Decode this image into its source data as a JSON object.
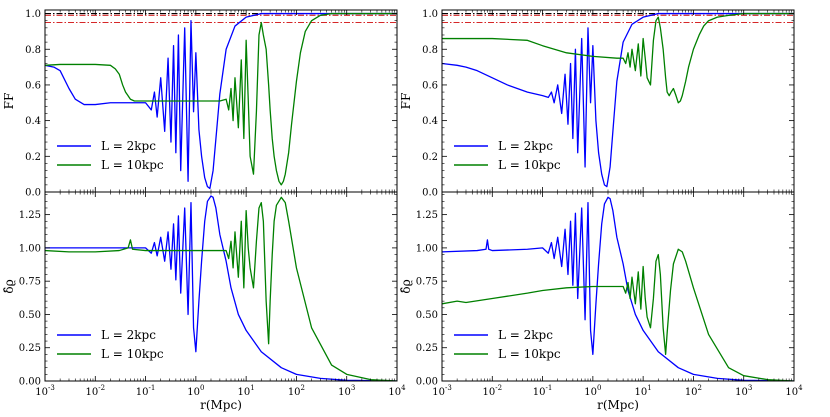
{
  "chart_data": {
    "type": "line",
    "x_scale": "log",
    "xlim": [
      0.001,
      10000
    ],
    "xlabel": "r(Mpc)",
    "x_tick_labels": [
      "10^-3",
      "10^-2",
      "10^-1",
      "10^0",
      "10^1",
      "10^2",
      "10^3",
      "10^4"
    ],
    "reference_lines": [
      {
        "y": 1.0,
        "color": "#000000",
        "style": "dash-dot"
      },
      {
        "y": 0.99,
        "color": "#d62728",
        "style": "dash-dot"
      },
      {
        "y": 0.95,
        "color": "#d62728",
        "style": "dash-dot"
      }
    ],
    "colors": {
      "L2": "#0000ff",
      "L10": "#008000"
    },
    "panels": [
      {
        "id": "left-top",
        "col": 0,
        "row": 0,
        "ylabel": "FF",
        "ylim": [
          0.0,
          1.02
        ],
        "y_ticks": [
          0.0,
          0.2,
          0.4,
          0.6,
          0.8,
          1.0
        ],
        "y_tick_labels": [
          "0.0",
          "0.2",
          "0.4",
          "0.6",
          "0.8",
          "1.0"
        ],
        "show_refs": true,
        "series": [
          {
            "name": "L = 2kpc",
            "color": "#0000ff",
            "x": [
              0.001,
              0.0015,
              0.002,
              0.003,
              0.004,
              0.006,
              0.01,
              0.02,
              0.05,
              0.1,
              0.13,
              0.15,
              0.17,
              0.2,
              0.24,
              0.28,
              0.32,
              0.36,
              0.4,
              0.45,
              0.5,
              0.6,
              0.7,
              0.8,
              0.9,
              1.0,
              1.15,
              1.3,
              1.5,
              1.7,
              1.9,
              2.2,
              2.6,
              3.0,
              4.0,
              6.0,
              10,
              20,
              50,
              100,
              1000,
              10000
            ],
            "y": [
              0.71,
              0.7,
              0.68,
              0.58,
              0.52,
              0.49,
              0.49,
              0.5,
              0.5,
              0.5,
              0.46,
              0.56,
              0.42,
              0.64,
              0.34,
              0.75,
              0.28,
              0.82,
              0.22,
              0.88,
              0.12,
              0.92,
              0.06,
              0.96,
              0.45,
              0.78,
              0.35,
              0.2,
              0.08,
              0.03,
              0.02,
              0.12,
              0.35,
              0.55,
              0.8,
              0.93,
              0.98,
              1.0,
              1.0,
              1.0,
              1.0,
              1.0
            ]
          },
          {
            "name": "L = 10kpc",
            "color": "#008000",
            "x": [
              0.001,
              0.002,
              0.005,
              0.01,
              0.02,
              0.025,
              0.03,
              0.035,
              0.04,
              0.05,
              0.06,
              0.1,
              0.5,
              1.0,
              3.0,
              4.0,
              4.5,
              5.0,
              5.5,
              6.0,
              7.0,
              8.0,
              9.0,
              10,
              11,
              12,
              14,
              16,
              18,
              20,
              22,
              25,
              28,
              30,
              33,
              36,
              40,
              45,
              50,
              55,
              60,
              70,
              80,
              100,
              120,
              150,
              200,
              300,
              500,
              1000,
              10000
            ],
            "y": [
              0.71,
              0.715,
              0.715,
              0.715,
              0.71,
              0.69,
              0.66,
              0.6,
              0.56,
              0.52,
              0.51,
              0.51,
              0.51,
              0.51,
              0.51,
              0.52,
              0.46,
              0.58,
              0.4,
              0.64,
              0.36,
              0.74,
              0.3,
              0.85,
              0.52,
              0.2,
              0.1,
              0.45,
              0.88,
              0.95,
              0.88,
              0.8,
              0.6,
              0.46,
              0.3,
              0.2,
              0.12,
              0.06,
              0.04,
              0.06,
              0.1,
              0.22,
              0.38,
              0.62,
              0.78,
              0.9,
              0.96,
              0.99,
              1.0,
              1.0,
              1.0
            ]
          }
        ]
      },
      {
        "id": "left-bottom",
        "col": 0,
        "row": 1,
        "ylabel": "δ̂ϱ",
        "ylim": [
          0.0,
          1.42
        ],
        "y_ticks": [
          0.0,
          0.25,
          0.5,
          0.75,
          1.0,
          1.25
        ],
        "y_tick_labels": [
          "0.00",
          "0.25",
          "0.50",
          "0.75",
          "1.00",
          "1.25"
        ],
        "show_refs": false,
        "series": [
          {
            "name": "L = 2kpc",
            "color": "#0000ff",
            "x": [
              0.001,
              0.01,
              0.1,
              0.13,
              0.15,
              0.17,
              0.2,
              0.24,
              0.28,
              0.32,
              0.36,
              0.4,
              0.45,
              0.5,
              0.6,
              0.7,
              0.8,
              0.9,
              1.0,
              1.15,
              1.3,
              1.5,
              1.7,
              2.0,
              2.2,
              2.5,
              3.0,
              4.0,
              5.0,
              7.0,
              10,
              20,
              50,
              100,
              300,
              1000,
              10000
            ],
            "y": [
              1.0,
              1.0,
              1.0,
              0.96,
              1.04,
              0.94,
              1.08,
              0.9,
              1.12,
              0.84,
              1.18,
              0.76,
              1.24,
              0.66,
              1.3,
              0.5,
              1.34,
              0.4,
              0.22,
              0.6,
              0.9,
              1.2,
              1.35,
              1.39,
              1.38,
              1.3,
              1.1,
              0.9,
              0.7,
              0.5,
              0.38,
              0.22,
              0.1,
              0.05,
              0.02,
              0.005,
              0.0
            ]
          },
          {
            "name": "L = 10kpc",
            "color": "#008000",
            "x": [
              0.001,
              0.003,
              0.01,
              0.03,
              0.045,
              0.05,
              0.055,
              0.1,
              0.5,
              1.0,
              3.0,
              4.0,
              4.5,
              5.0,
              5.5,
              6.0,
              7.0,
              8.0,
              9.0,
              10,
              11,
              12,
              14,
              16,
              18,
              20,
              22,
              25,
              28,
              30,
              33,
              36,
              40,
              50,
              60,
              70,
              100,
              200,
              500,
              1000,
              3000,
              10000
            ],
            "y": [
              0.98,
              0.97,
              0.97,
              0.98,
              1.0,
              1.06,
              0.99,
              0.98,
              0.98,
              0.98,
              0.98,
              0.98,
              0.92,
              1.05,
              0.85,
              1.12,
              0.78,
              1.2,
              0.7,
              1.28,
              1.0,
              0.85,
              0.7,
              1.05,
              1.3,
              1.34,
              1.2,
              0.6,
              0.28,
              0.6,
              0.95,
              1.2,
              1.32,
              1.38,
              1.34,
              1.2,
              0.85,
              0.4,
              0.12,
              0.05,
              0.01,
              0.0
            ]
          }
        ]
      },
      {
        "id": "right-top",
        "col": 1,
        "row": 0,
        "ylabel": "FF",
        "ylim": [
          0.0,
          1.02
        ],
        "y_ticks": [
          0.0,
          0.2,
          0.4,
          0.6,
          0.8,
          1.0
        ],
        "y_tick_labels": [
          "0.0",
          "0.2",
          "0.4",
          "0.6",
          "0.8",
          "1.0"
        ],
        "show_refs": true,
        "series": [
          {
            "name": "L = 2kpc",
            "color": "#0000ff",
            "x": [
              0.001,
              0.002,
              0.003,
              0.005,
              0.01,
              0.02,
              0.05,
              0.1,
              0.13,
              0.15,
              0.17,
              0.2,
              0.24,
              0.28,
              0.32,
              0.36,
              0.4,
              0.45,
              0.5,
              0.6,
              0.7,
              0.8,
              0.9,
              1.0,
              1.15,
              1.3,
              1.5,
              1.7,
              1.9,
              2.2,
              2.6,
              3.0,
              4.0,
              6.0,
              10,
              20,
              50,
              100,
              1000,
              10000
            ],
            "y": [
              0.72,
              0.71,
              0.7,
              0.68,
              0.64,
              0.6,
              0.56,
              0.54,
              0.53,
              0.56,
              0.5,
              0.6,
              0.44,
              0.66,
              0.38,
              0.72,
              0.3,
              0.8,
              0.22,
              0.86,
              0.14,
              0.92,
              0.5,
              0.82,
              0.4,
              0.22,
              0.1,
              0.04,
              0.03,
              0.14,
              0.4,
              0.62,
              0.84,
              0.94,
              0.98,
              1.0,
              1.0,
              1.0,
              1.0,
              1.0
            ]
          },
          {
            "name": "L = 10kpc",
            "color": "#008000",
            "x": [
              0.001,
              0.01,
              0.05,
              0.1,
              0.3,
              1.0,
              3.0,
              4.0,
              4.5,
              5.0,
              5.5,
              6.0,
              7.0,
              8.0,
              9.0,
              10,
              11,
              12,
              14,
              16,
              18,
              20,
              22,
              25,
              28,
              30,
              33,
              36,
              40,
              45,
              50,
              55,
              60,
              70,
              80,
              100,
              130,
              160,
              200,
              300,
              500,
              1000,
              10000
            ],
            "y": [
              0.86,
              0.86,
              0.85,
              0.82,
              0.78,
              0.76,
              0.75,
              0.75,
              0.72,
              0.78,
              0.7,
              0.8,
              0.68,
              0.83,
              0.65,
              0.86,
              0.75,
              0.64,
              0.6,
              0.85,
              0.96,
              0.98,
              0.92,
              0.8,
              0.64,
              0.56,
              0.54,
              0.56,
              0.58,
              0.54,
              0.5,
              0.51,
              0.54,
              0.62,
              0.7,
              0.8,
              0.88,
              0.93,
              0.96,
              0.98,
              0.99,
              1.0,
              1.0
            ]
          }
        ]
      },
      {
        "id": "right-bottom",
        "col": 1,
        "row": 1,
        "ylabel": "δ̂ϱ",
        "ylim": [
          0.0,
          1.42
        ],
        "y_ticks": [
          0.0,
          0.25,
          0.5,
          0.75,
          1.0,
          1.25
        ],
        "y_tick_labels": [
          "0.00",
          "0.25",
          "0.50",
          "0.75",
          "1.00",
          "1.25"
        ],
        "show_refs": false,
        "series": [
          {
            "name": "L = 2kpc",
            "color": "#0000ff",
            "x": [
              0.001,
              0.005,
              0.0075,
              0.008,
              0.0085,
              0.01,
              0.05,
              0.1,
              0.13,
              0.15,
              0.17,
              0.2,
              0.24,
              0.28,
              0.32,
              0.36,
              0.4,
              0.45,
              0.5,
              0.6,
              0.7,
              0.8,
              0.9,
              1.0,
              1.15,
              1.3,
              1.5,
              1.7,
              2.0,
              2.2,
              2.5,
              3.0,
              4.0,
              5.0,
              7.0,
              10,
              20,
              50,
              100,
              300,
              1000,
              10000
            ],
            "y": [
              0.97,
              0.98,
              0.99,
              1.06,
              0.99,
              0.98,
              0.99,
              1.0,
              0.96,
              1.04,
              0.92,
              1.08,
              0.86,
              1.14,
              0.8,
              1.2,
              0.72,
              1.26,
              0.62,
              1.3,
              0.46,
              1.34,
              0.38,
              0.2,
              0.58,
              0.88,
              1.18,
              1.33,
              1.38,
              1.37,
              1.28,
              1.08,
              0.88,
              0.68,
              0.5,
              0.38,
              0.22,
              0.1,
              0.05,
              0.02,
              0.005,
              0.0
            ]
          },
          {
            "name": "L = 10kpc",
            "color": "#008000",
            "x": [
              0.001,
              0.002,
              0.003,
              0.01,
              0.05,
              0.1,
              0.3,
              1.0,
              3.0,
              4.0,
              4.5,
              5.0,
              5.5,
              6.0,
              7.0,
              8.0,
              9.0,
              10,
              11,
              12,
              14,
              16,
              18,
              20,
              22,
              25,
              28,
              30,
              35,
              40,
              50,
              60,
              70,
              100,
              200,
              500,
              1000,
              3000,
              10000
            ],
            "y": [
              0.58,
              0.6,
              0.59,
              0.62,
              0.66,
              0.68,
              0.7,
              0.71,
              0.71,
              0.71,
              0.66,
              0.74,
              0.62,
              0.78,
              0.58,
              0.82,
              0.54,
              0.86,
              0.62,
              0.48,
              0.4,
              0.62,
              0.9,
              0.95,
              0.8,
              0.4,
              0.2,
              0.36,
              0.68,
              0.88,
              0.99,
              0.97,
              0.9,
              0.7,
              0.35,
              0.1,
              0.04,
              0.01,
              0.0
            ]
          }
        ]
      }
    ]
  }
}
